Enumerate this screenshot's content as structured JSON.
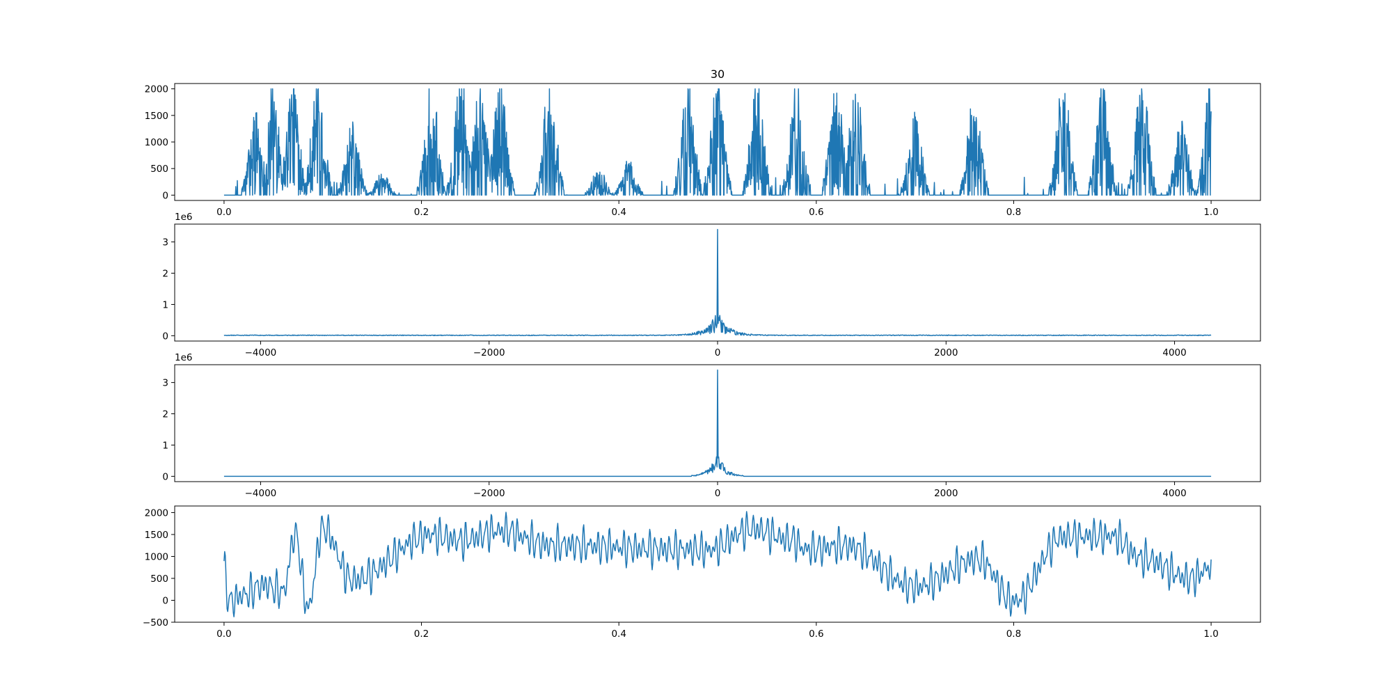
{
  "chart_data": [
    {
      "type": "line",
      "title": "30",
      "x_range": [
        0.0,
        1.0
      ],
      "xlim": [
        -0.05,
        1.05
      ],
      "ylim": [
        -100,
        2100
      ],
      "xticks": [
        0.0,
        0.2,
        0.4,
        0.6,
        0.8,
        1.0
      ],
      "xtick_labels": [
        "0.0",
        "0.2",
        "0.4",
        "0.6",
        "0.8",
        "1.0"
      ],
      "yticks": [
        0,
        500,
        1000,
        1500,
        2000
      ],
      "ytick_labels": [
        "0",
        "500",
        "1000",
        "1500",
        "2000"
      ],
      "offset_text": "",
      "signal": "bursty time-domain signal clipped to 0..2000",
      "bursts": [
        {
          "x": 0.032,
          "peak": 1450
        },
        {
          "x": 0.05,
          "peak": 1990
        },
        {
          "x": 0.07,
          "peak": 2000
        },
        {
          "x": 0.095,
          "peak": 2000
        },
        {
          "x": 0.13,
          "peak": 1250
        },
        {
          "x": 0.16,
          "peak": 400
        },
        {
          "x": 0.21,
          "peak": 2000
        },
        {
          "x": 0.24,
          "peak": 2000
        },
        {
          "x": 0.26,
          "peak": 2000
        },
        {
          "x": 0.28,
          "peak": 1990
        },
        {
          "x": 0.33,
          "peak": 2000
        },
        {
          "x": 0.38,
          "peak": 480
        },
        {
          "x": 0.41,
          "peak": 600
        },
        {
          "x": 0.47,
          "peak": 2000
        },
        {
          "x": 0.5,
          "peak": 2000
        },
        {
          "x": 0.54,
          "peak": 2000
        },
        {
          "x": 0.58,
          "peak": 2000
        },
        {
          "x": 0.62,
          "peak": 2000
        },
        {
          "x": 0.64,
          "peak": 2000
        },
        {
          "x": 0.7,
          "peak": 1400
        },
        {
          "x": 0.76,
          "peak": 1750
        },
        {
          "x": 0.85,
          "peak": 2000
        },
        {
          "x": 0.89,
          "peak": 2000
        },
        {
          "x": 0.93,
          "peak": 2000
        },
        {
          "x": 0.97,
          "peak": 1300
        },
        {
          "x": 1.0,
          "peak": 2000
        }
      ],
      "color": "#1f77b4"
    },
    {
      "type": "line",
      "title": "",
      "x_range": [
        -4320,
        4320
      ],
      "xlim": [
        -4752,
        4752
      ],
      "ylim": [
        -170000,
        3570000
      ],
      "xticks": [
        -4000,
        -2000,
        0,
        2000,
        4000
      ],
      "xtick_labels": [
        "−4000",
        "−2000",
        "0",
        "2000",
        "4000"
      ],
      "yticks": [
        0,
        1000000,
        2000000,
        3000000
      ],
      "ytick_labels": [
        "0",
        "1",
        "2",
        "3"
      ],
      "offset_text": "1e6",
      "spectrum": {
        "dc_peak": 3400000,
        "central_lobe_height": 800000,
        "central_lobe_width": 250,
        "noise_floor": 40000
      },
      "color": "#1f77b4"
    },
    {
      "type": "line",
      "title": "",
      "x_range": [
        -4320,
        4320
      ],
      "xlim": [
        -4752,
        4752
      ],
      "ylim": [
        -170000,
        3570000
      ],
      "xticks": [
        -4000,
        -2000,
        0,
        2000,
        4000
      ],
      "xtick_labels": [
        "−4000",
        "−2000",
        "0",
        "2000",
        "4000"
      ],
      "yticks": [
        0,
        1000000,
        2000000,
        3000000
      ],
      "ytick_labels": [
        "0",
        "1",
        "2",
        "3"
      ],
      "offset_text": "1e6",
      "spectrum": {
        "dc_peak": 3400000,
        "central_lobe_height": 800000,
        "cutoff": 230,
        "noise_floor": 0
      },
      "color": "#1f77b4"
    },
    {
      "type": "line",
      "title": "",
      "x_range": [
        0.0,
        1.0
      ],
      "xlim": [
        -0.05,
        1.05
      ],
      "ylim": [
        -500,
        2150
      ],
      "xticks": [
        0.0,
        0.2,
        0.4,
        0.6,
        0.8,
        1.0
      ],
      "xtick_labels": [
        "0.0",
        "0.2",
        "0.4",
        "0.6",
        "0.8",
        "1.0"
      ],
      "yticks": [
        -500,
        0,
        500,
        1000,
        1500,
        2000
      ],
      "ytick_labels": [
        "−500",
        "0",
        "500",
        "1000",
        "1500",
        "2000"
      ],
      "offset_text": "",
      "signal": "low-pass filtered reconstruction",
      "keypoints": [
        {
          "x": 0.0,
          "y": 800
        },
        {
          "x": 0.005,
          "y": -200
        },
        {
          "x": 0.02,
          "y": 0
        },
        {
          "x": 0.04,
          "y": 300
        },
        {
          "x": 0.06,
          "y": 100
        },
        {
          "x": 0.072,
          "y": 1850
        },
        {
          "x": 0.085,
          "y": -400
        },
        {
          "x": 0.1,
          "y": 2030
        },
        {
          "x": 0.13,
          "y": 450
        },
        {
          "x": 0.21,
          "y": 1830
        },
        {
          "x": 0.24,
          "y": 1650
        },
        {
          "x": 0.28,
          "y": 1960
        },
        {
          "x": 0.33,
          "y": 1520
        },
        {
          "x": 0.47,
          "y": 1380
        },
        {
          "x": 0.49,
          "y": 1360
        },
        {
          "x": 0.535,
          "y": 2010
        },
        {
          "x": 0.575,
          "y": 1680
        },
        {
          "x": 0.59,
          "y": 1380
        },
        {
          "x": 0.63,
          "y": 1490
        },
        {
          "x": 0.7,
          "y": 250
        },
        {
          "x": 0.765,
          "y": 1090
        },
        {
          "x": 0.8,
          "y": -200
        },
        {
          "x": 0.85,
          "y": 1770
        },
        {
          "x": 0.9,
          "y": 1790
        },
        {
          "x": 0.93,
          "y": 1110
        },
        {
          "x": 0.98,
          "y": 500
        },
        {
          "x": 1.0,
          "y": 850
        }
      ],
      "color": "#1f77b4"
    }
  ]
}
